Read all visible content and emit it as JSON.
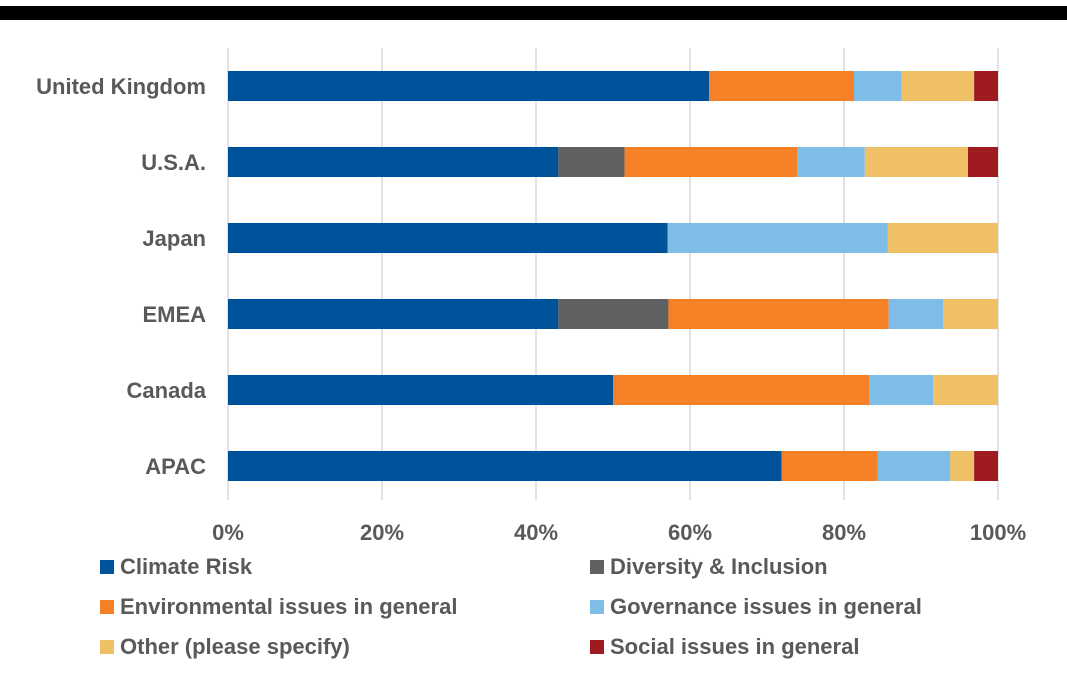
{
  "chart_data": {
    "type": "bar",
    "orientation": "horizontal",
    "stacked": "percent",
    "title": "",
    "xlabel": "",
    "ylabel": "",
    "xlim": [
      0,
      100
    ],
    "x_ticks": [
      "0%",
      "20%",
      "40%",
      "60%",
      "80%",
      "100%"
    ],
    "grid": "vertical",
    "legend_position": "bottom",
    "categories": [
      "United Kingdom",
      "U.S.A.",
      "Japan",
      "EMEA",
      "Canada",
      "APAC"
    ],
    "series": [
      {
        "name": "Climate Risk",
        "color": "#00539B",
        "values": [
          62.5,
          42.9,
          57.1,
          42.9,
          50.0,
          71.9
        ]
      },
      {
        "name": "Diversity & Inclusion",
        "color": "#5F6062",
        "values": [
          0,
          8.6,
          0,
          14.3,
          0,
          0
        ]
      },
      {
        "name": "Environmental issues in general",
        "color": "#F58025",
        "values": [
          18.8,
          22.4,
          0,
          28.6,
          33.3,
          12.5
        ]
      },
      {
        "name": "Governance issues in general",
        "color": "#7DBDE8",
        "values": [
          6.2,
          8.8,
          28.6,
          7.1,
          8.3,
          9.4
        ]
      },
      {
        "name": "Other (please specify)",
        "color": "#F0C066",
        "values": [
          9.4,
          13.4,
          14.3,
          7.1,
          8.4,
          3.1
        ]
      },
      {
        "name": "Social issues in general",
        "color": "#9E1B1F",
        "values": [
          3.1,
          3.9,
          0,
          0,
          0,
          3.1
        ]
      }
    ]
  }
}
